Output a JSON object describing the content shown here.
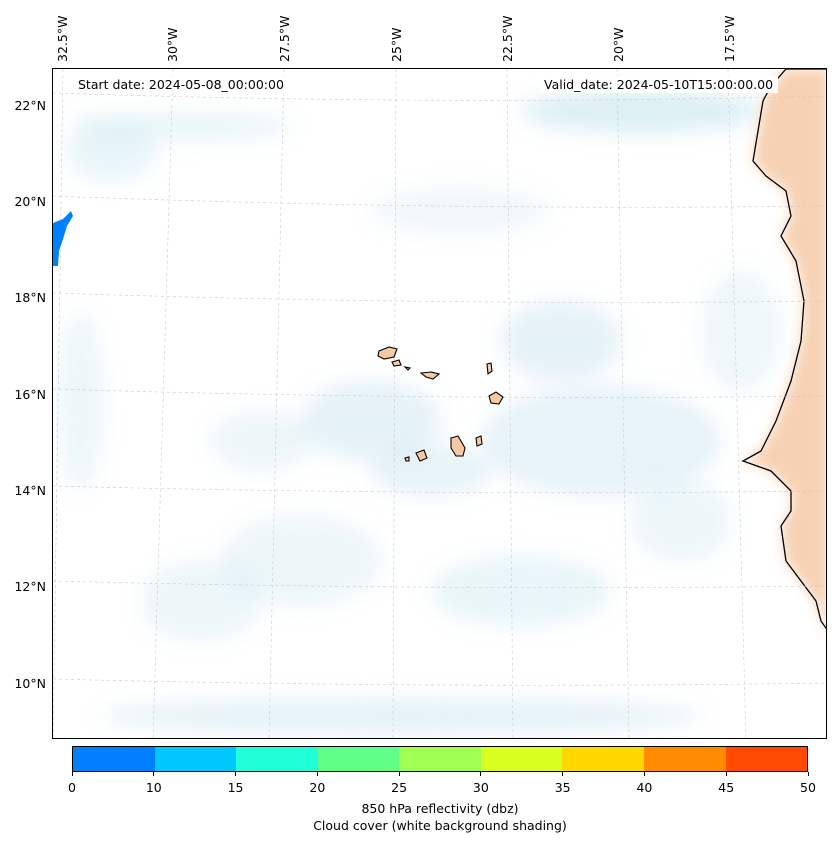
{
  "map": {
    "start_date": "Start date: 2024-05-08_00:00:00",
    "valid_date": "Valid_date: 2024-05-10T15:00:00.00",
    "lon_labels": [
      "32.5°W",
      "30°W",
      "27.5°W",
      "25°W",
      "22.5°W",
      "20°W",
      "17.5°W"
    ],
    "lat_labels": [
      "22°N",
      "20°N",
      "18°N",
      "16°N",
      "14°N",
      "12°N",
      "10°N"
    ],
    "islands": [
      "Santo Antão",
      "São Vicente",
      "Santa Luzia",
      "São Nicolau",
      "Sal",
      "Boa Vista",
      "Maio",
      "Santiago",
      "Fogo",
      "Brava"
    ],
    "land_color": "#f6c9a6",
    "cloud_color": "#cfe8f0",
    "reflectivity_echo_color": "#0080ff"
  },
  "colorbar": {
    "ticks": [
      "0",
      "10",
      "15",
      "20",
      "25",
      "30",
      "35",
      "40",
      "45",
      "50"
    ],
    "colors": [
      "#0080ff",
      "#00c8ff",
      "#20ffd8",
      "#60ff88",
      "#a0ff50",
      "#d8ff20",
      "#ffd800",
      "#ff8c00",
      "#ff4a00"
    ],
    "label_line1": "850 hPa reflectivity (dbz)",
    "label_line2": "Cloud cover (white background shading)"
  }
}
